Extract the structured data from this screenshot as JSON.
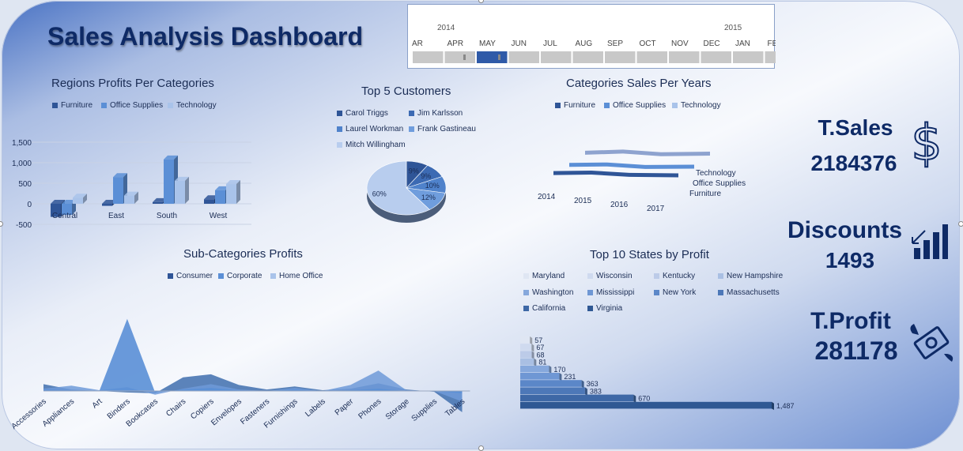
{
  "dashboard": {
    "title": "Sales Analysis Dashboard"
  },
  "timeline": {
    "years": [
      "2014",
      "2015"
    ],
    "months": [
      "AR",
      "APR",
      "MAY",
      "JUN",
      "JUL",
      "AUG",
      "SEP",
      "OCT",
      "NOV",
      "DEC",
      "JAN",
      "FEB"
    ],
    "selected_month": "MAY"
  },
  "kpis": {
    "sales_label": "T.Sales",
    "sales_value": "2184376",
    "discounts_label": "Discounts",
    "discounts_value": "1493",
    "profit_label": "T.Profit",
    "profit_value": "281178"
  },
  "colors": {
    "dark": "#2f5597",
    "mid": "#5b8fd6",
    "light": "#a9c3ea",
    "navy": "#0e2a66"
  },
  "chart_data": [
    {
      "id": "regions",
      "type": "bar",
      "title": "Regions Profits Per Categories",
      "categories": [
        "Central",
        "East",
        "South",
        "West"
      ],
      "series": [
        {
          "name": "Furniture",
          "values": [
            -320,
            -50,
            40,
            110
          ]
        },
        {
          "name": "Office Supplies",
          "values": [
            -270,
            650,
            1080,
            330
          ]
        },
        {
          "name": "Technology",
          "values": [
            150,
            200,
            560,
            480
          ]
        }
      ],
      "yticks": [
        "1,500",
        "1,000",
        "500",
        "0",
        "-500"
      ],
      "ylim": [
        -500,
        1500
      ]
    },
    {
      "id": "customers",
      "type": "pie",
      "title": "Top 5 Customers",
      "labels": [
        "Carol Triggs",
        "Jim Karlsson",
        "Laurel Workman",
        "Frank Gastineau",
        "Mitch Willingham"
      ],
      "values": [
        9,
        9,
        10,
        12,
        60
      ],
      "value_labels": [
        "9%",
        "9%",
        "10%",
        "12%",
        "60%"
      ]
    },
    {
      "id": "years",
      "type": "line",
      "title": "Categories Sales Per Years",
      "categories": [
        "2014",
        "2015",
        "2016",
        "2017"
      ],
      "series": [
        {
          "name": "Furniture",
          "values": [
            160000,
            175000,
            170000,
            178000
          ]
        },
        {
          "name": "Office Supplies",
          "values": [
            150000,
            165000,
            158000,
            172000
          ]
        },
        {
          "name": "Technology",
          "values": [
            170000,
            190000,
            182000,
            198000
          ]
        }
      ],
      "depth_labels": [
        "Technology",
        "Office Supplies",
        "Furniture"
      ]
    },
    {
      "id": "subcats",
      "type": "area",
      "title": "Sub-Categories Profits",
      "categories": [
        "Accessories",
        "Appliances",
        "Art",
        "Binders",
        "Bookcases",
        "Chairs",
        "Copiers",
        "Envelopes",
        "Fasteners",
        "Furnishings",
        "Labels",
        "Paper",
        "Phones",
        "Storage",
        "Supplies",
        "Tables"
      ],
      "series": [
        {
          "name": "Consumer",
          "values": [
            9,
            2,
            0,
            -2,
            -3,
            18,
            22,
            8,
            2,
            6,
            1,
            3,
            10,
            2,
            -1,
            -28
          ]
        },
        {
          "name": "Corporate",
          "values": [
            3,
            7,
            1,
            5,
            -5,
            3,
            9,
            2,
            0,
            4,
            0,
            8,
            27,
            1,
            0,
            -14
          ]
        },
        {
          "name": "Home Office",
          "values": [
            2,
            1,
            0,
            95,
            -2,
            2,
            4,
            1,
            0,
            2,
            0,
            1,
            3,
            0,
            0,
            -3
          ]
        }
      ],
      "ylim": [
        -30,
        100
      ]
    },
    {
      "id": "states",
      "type": "bar",
      "title": "Top 10 States by Profit",
      "categories": [
        "Maryland",
        "Wisconsin",
        "Kentucky",
        "New Hampshire",
        "Washington",
        "Mississippi",
        "New York",
        "Massachusetts",
        "California",
        "Virginia"
      ],
      "values": [
        57,
        67,
        68,
        81,
        170,
        231,
        363,
        383,
        670,
        1487
      ],
      "value_labels": [
        "57",
        "67",
        "68",
        "81",
        "170",
        "231",
        "363",
        "383",
        "670",
        "1,487"
      ],
      "xlim": [
        0,
        1487
      ]
    }
  ]
}
